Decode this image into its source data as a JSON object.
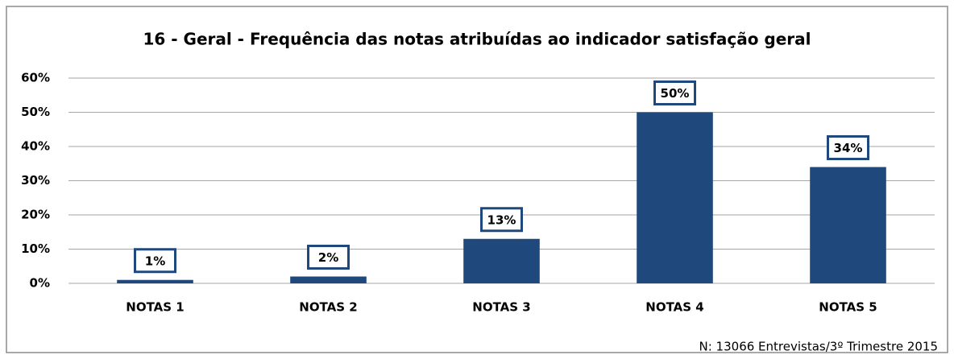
{
  "chart_data": {
    "type": "bar",
    "title": "16 - Geral - Frequência das notas atribuídas ao indicador satisfação geral",
    "categories": [
      "NOTAS 1",
      "NOTAS 2",
      "NOTAS 3",
      "NOTAS 4",
      "NOTAS 5"
    ],
    "values": [
      1,
      2,
      13,
      50,
      34
    ],
    "value_labels": [
      "1%",
      "2%",
      "13%",
      "50%",
      "34%"
    ],
    "color": "#1f497d",
    "ylim": [
      0,
      60
    ],
    "yticks": [
      {
        "value": 0,
        "label": "0%"
      },
      {
        "value": 10,
        "label": "10%"
      },
      {
        "value": 20,
        "label": "20%"
      },
      {
        "value": 30,
        "label": "30%"
      },
      {
        "value": 40,
        "label": "40%"
      },
      {
        "value": 50,
        "label": "50%"
      },
      {
        "value": 60,
        "label": "60%"
      }
    ],
    "grid": true,
    "note": "N: 13066 Entrevistas/3º Trimestre 2015"
  }
}
